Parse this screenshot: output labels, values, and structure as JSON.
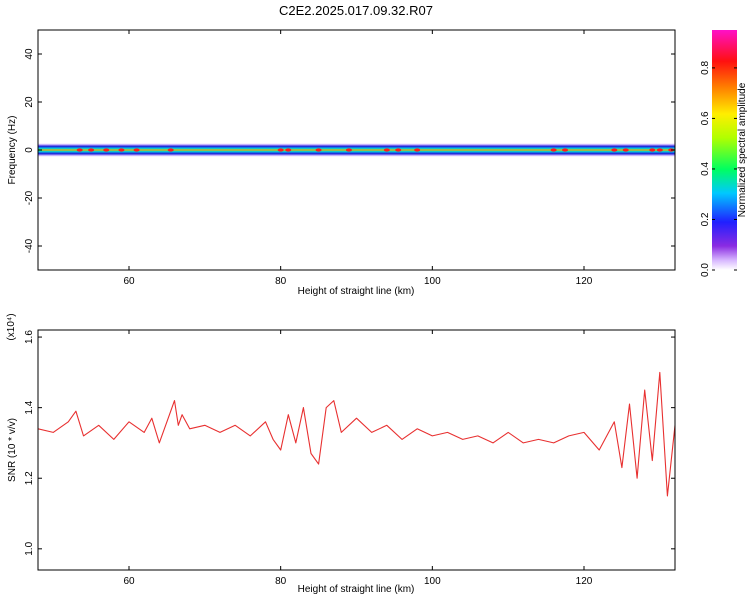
{
  "title": "C2E2.2025.017.09.32.R07",
  "chart_data": [
    {
      "type": "heatmap",
      "xlabel": "Height of straight line (km)",
      "ylabel": "Frequency (Hz)",
      "xlim": [
        48,
        132
      ],
      "ylim": [
        -50,
        50
      ],
      "xticks": [
        "60",
        "80",
        "100",
        "120"
      ],
      "yticks": [
        "40",
        "20",
        "0",
        "-20",
        "-40"
      ],
      "colorbar": {
        "label": "Normalized spectral amplitude",
        "range": [
          0,
          0.95
        ],
        "ticks": [
          "0.0",
          "0.2",
          "0.4",
          "0.6",
          "0.8"
        ],
        "colormap": "rainbow (white-violet-blue-cyan-green-yellow-orange-red-magenta)"
      },
      "band_center_hz": 0,
      "band_halfwidth_hz": 3,
      "hotspots_km": [
        53.5,
        55,
        57,
        59,
        61,
        65.5,
        80,
        81,
        85,
        89,
        94,
        95.5,
        98,
        116,
        117.5,
        124,
        125.5,
        129,
        130,
        131.5
      ]
    },
    {
      "type": "line",
      "xlabel": "Height of straight line (km)",
      "ylabel": "SNR (10 * v/v)",
      "scale_note": "(x10⁴)",
      "xlim": [
        48,
        132
      ],
      "ylim": [
        0.94,
        1.62
      ],
      "xticks": [
        "60",
        "80",
        "100",
        "120"
      ],
      "yticks": [
        "1.6",
        "1.4",
        "1.2",
        "1.0"
      ],
      "series": [
        {
          "color": "#e83030",
          "x": [
            48,
            50,
            52,
            53,
            54,
            56,
            58,
            60,
            62,
            63,
            64,
            65,
            66,
            66.5,
            67,
            68,
            70,
            72,
            74,
            76,
            78,
            79,
            80,
            81,
            82,
            83,
            84,
            85,
            86,
            87,
            88,
            90,
            92,
            94,
            96,
            98,
            100,
            102,
            104,
            106,
            108,
            110,
            112,
            114,
            116,
            118,
            120,
            122,
            124,
            125,
            126,
            127,
            128,
            129,
            130,
            131,
            132
          ],
          "y": [
            1.34,
            1.33,
            1.36,
            1.39,
            1.32,
            1.35,
            1.31,
            1.36,
            1.33,
            1.37,
            1.3,
            1.36,
            1.42,
            1.35,
            1.38,
            1.34,
            1.35,
            1.33,
            1.35,
            1.32,
            1.36,
            1.31,
            1.28,
            1.38,
            1.3,
            1.4,
            1.27,
            1.24,
            1.4,
            1.42,
            1.33,
            1.37,
            1.33,
            1.35,
            1.31,
            1.34,
            1.32,
            1.33,
            1.31,
            1.32,
            1.3,
            1.33,
            1.3,
            1.31,
            1.3,
            1.32,
            1.33,
            1.28,
            1.36,
            1.23,
            1.41,
            1.2,
            1.45,
            1.25,
            1.5,
            1.15,
            1.35
          ]
        }
      ]
    }
  ]
}
